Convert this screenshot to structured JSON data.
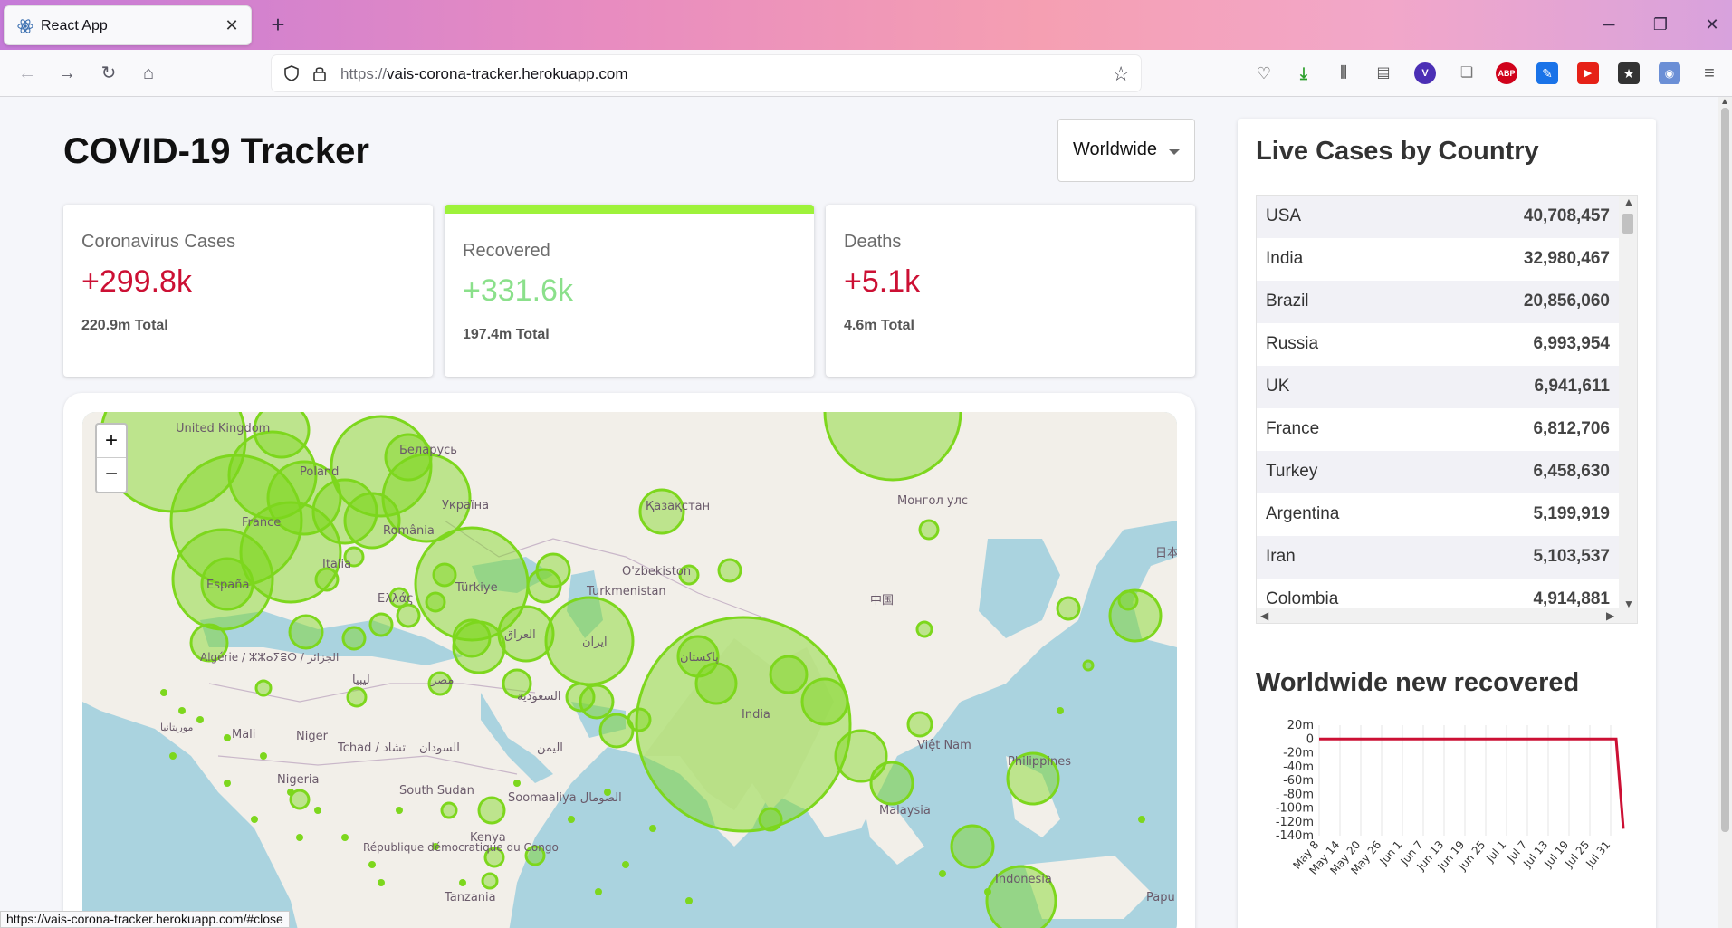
{
  "browser": {
    "tab_title": "React App",
    "url_prefix": "https://",
    "url_host": "vais-corona-tracker.herokuapp.com",
    "status_url": "https://vais-corona-tracker.herokuapp.com/#close"
  },
  "app": {
    "title": "COVID-19 Tracker",
    "country_select": "Worldwide"
  },
  "stats": [
    {
      "label": "Coronavirus Cases",
      "value": "+299.8k",
      "total": "220.9m Total",
      "color": "#cc1034"
    },
    {
      "label": "Recovered",
      "value": "+331.6k",
      "total": "197.4m Total",
      "color": "#7dd71d"
    },
    {
      "label": "Deaths",
      "value": "+5.1k",
      "total": "4.6m Total",
      "color": "#cc1034"
    }
  ],
  "map": {
    "zoom_in": "+",
    "zoom_out": "−",
    "labels": [
      "United Kingdom",
      "Беларусь",
      "Poland",
      "France",
      "Україна",
      "Қазақстан",
      "Монгол улс",
      "România",
      "Italia",
      "España",
      "Ελλάς",
      "Türkiye",
      "O'zbekiston",
      "Turkmenistan",
      "中国",
      "日本",
      "ایران",
      "العراق",
      "پاکستان",
      "India",
      "Algérie / ⵣⵣⴰⵢⴻⵔ / الجزائر",
      "ليبيا",
      "مصر",
      "السعودية",
      "Mali",
      "Niger",
      "Tchad / تشاد",
      "السودان",
      "اليمن",
      "Việt Nam",
      "Philippines",
      "Nigeria",
      "South Sudan",
      "Soomaaliya الصومال",
      "Malaysia",
      "Kenya",
      "République démocratique du Congo",
      "Tanzania",
      "Indonesia",
      "موريتانيا",
      "Papu"
    ]
  },
  "live_cases": {
    "title": "Live Cases by Country",
    "rows": [
      {
        "country": "USA",
        "cases": "40,708,457"
      },
      {
        "country": "India",
        "cases": "32,980,467"
      },
      {
        "country": "Brazil",
        "cases": "20,856,060"
      },
      {
        "country": "Russia",
        "cases": "6,993,954"
      },
      {
        "country": "UK",
        "cases": "6,941,611"
      },
      {
        "country": "France",
        "cases": "6,812,706"
      },
      {
        "country": "Turkey",
        "cases": "6,458,630"
      },
      {
        "country": "Argentina",
        "cases": "5,199,919"
      },
      {
        "country": "Iran",
        "cases": "5,103,537"
      },
      {
        "country": "Colombia",
        "cases": "4,914,881"
      }
    ]
  },
  "chart_data": {
    "type": "line",
    "title": "Worldwide new recovered",
    "y_ticks": [
      "20m",
      "0",
      "-20m",
      "-40m",
      "-60m",
      "-80m",
      "-100m",
      "-120m",
      "-140m"
    ],
    "ylim": [
      -140,
      20
    ],
    "x_ticks": [
      "May 8",
      "May 14",
      "May 20",
      "May 26",
      "Jun 1",
      "Jun 7",
      "Jun 13",
      "Jun 19",
      "Jun 25",
      "Jul 1",
      "Jul 7",
      "Jul 13",
      "Jul 19",
      "Jul 25",
      "Jul 31"
    ],
    "series": [
      {
        "values_m": [
          0,
          0,
          0,
          0,
          0,
          0,
          0,
          0,
          0,
          0,
          0,
          0,
          0,
          0,
          0,
          -130
        ],
        "color": "#cc1034"
      }
    ]
  }
}
